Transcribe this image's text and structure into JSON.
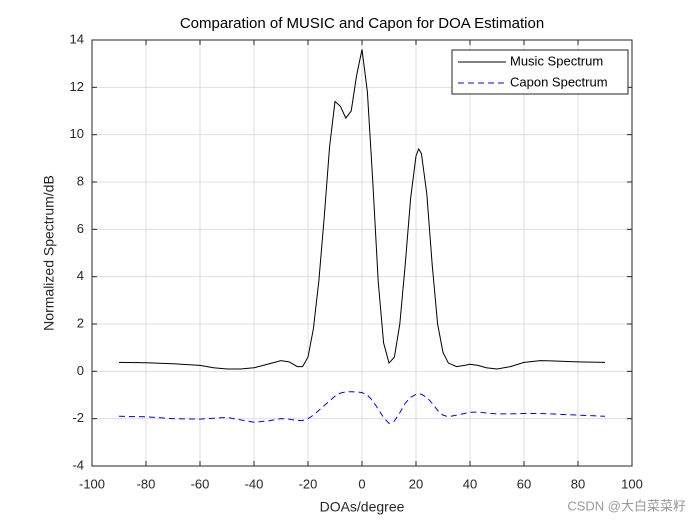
{
  "chart_data": {
    "type": "line",
    "title": "Comparation of MUSIC and Capon for DOA Estimation",
    "xlabel": "DOAs/degree",
    "ylabel": "Normalized Spectrum/dB",
    "watermark": "CSDN @大白菜菜籽",
    "x": [
      -90,
      -80,
      -70,
      -60,
      -55,
      -50,
      -45,
      -40,
      -35,
      -30,
      -27,
      -24,
      -22,
      -20,
      -18,
      -16,
      -14,
      -12,
      -10,
      -8,
      -6,
      -4,
      -2,
      0,
      2,
      4,
      6,
      8,
      10,
      12,
      14,
      16,
      18,
      20,
      21,
      22,
      24,
      26,
      28,
      30,
      32,
      35,
      38,
      40,
      43,
      46,
      50,
      55,
      60,
      66,
      70,
      80,
      90
    ],
    "series": [
      {
        "name": "Music Spectrum",
        "color": "#000000",
        "dash": "solid",
        "values": [
          0.38,
          0.36,
          0.32,
          0.25,
          0.15,
          0.1,
          0.1,
          0.15,
          0.3,
          0.45,
          0.4,
          0.2,
          0.2,
          0.6,
          1.8,
          3.8,
          6.5,
          9.5,
          11.4,
          11.2,
          10.7,
          11.0,
          12.5,
          13.6,
          11.8,
          8,
          3.8,
          1.2,
          0.35,
          0.6,
          2.0,
          4.5,
          7.3,
          9.1,
          9.4,
          9.2,
          7.5,
          4.5,
          2.0,
          0.8,
          0.35,
          0.2,
          0.25,
          0.3,
          0.25,
          0.15,
          0.1,
          0.2,
          0.38,
          0.45,
          0.44,
          0.4,
          0.38
        ]
      },
      {
        "name": "Capon Spectrum",
        "color": "#0000ff",
        "dash": "dashed",
        "values": [
          -1.9,
          -1.92,
          -2.0,
          -2.02,
          -1.98,
          -1.95,
          -2.05,
          -2.15,
          -2.1,
          -2.0,
          -2.02,
          -2.08,
          -2.08,
          -2.0,
          -1.85,
          -1.65,
          -1.45,
          -1.25,
          -1.05,
          -0.92,
          -0.87,
          -0.86,
          -0.87,
          -0.9,
          -1.0,
          -1.25,
          -1.6,
          -1.95,
          -2.2,
          -2.1,
          -1.75,
          -1.35,
          -1.1,
          -0.97,
          -0.95,
          -0.97,
          -1.1,
          -1.35,
          -1.65,
          -1.85,
          -1.92,
          -1.85,
          -1.78,
          -1.73,
          -1.72,
          -1.76,
          -1.8,
          -1.8,
          -1.78,
          -1.78,
          -1.8,
          -1.85,
          -1.9
        ]
      }
    ],
    "xlim": [
      -100,
      100
    ],
    "xticks": [
      -100,
      -80,
      -60,
      -40,
      -20,
      0,
      20,
      40,
      60,
      80,
      100
    ],
    "ylim": [
      -4,
      14
    ],
    "yticks": [
      -4,
      -2,
      0,
      2,
      4,
      6,
      8,
      10,
      12,
      14
    ],
    "grid": true,
    "legend": "northeast"
  }
}
